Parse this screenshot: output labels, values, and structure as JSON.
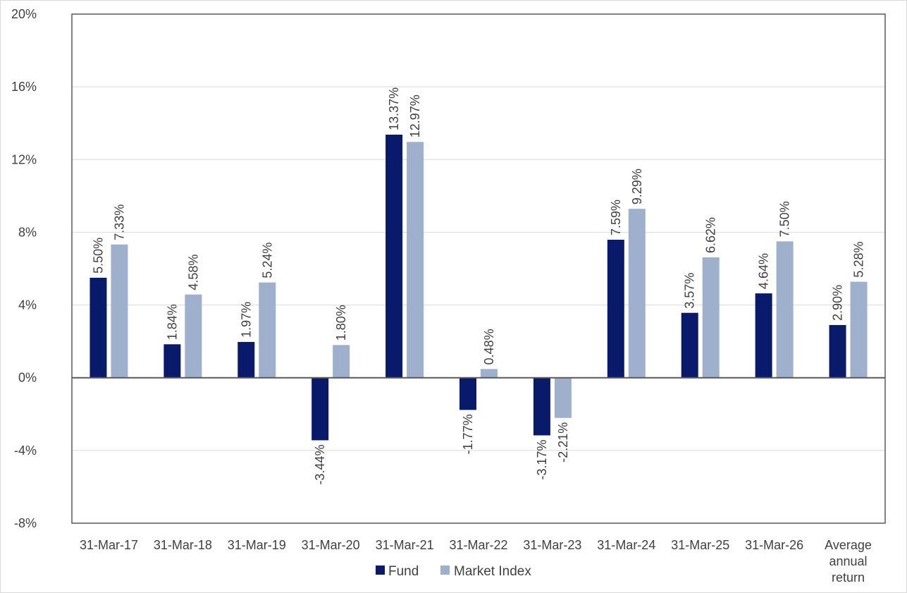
{
  "chart_data": {
    "type": "bar",
    "categories": [
      [
        "31-Mar-17"
      ],
      [
        "31-Mar-18"
      ],
      [
        "31-Mar-19"
      ],
      [
        "31-Mar-20"
      ],
      [
        "31-Mar-21"
      ],
      [
        "31-Mar-22"
      ],
      [
        "31-Mar-23"
      ],
      [
        "31-Mar-24"
      ],
      [
        "31-Mar-25"
      ],
      [
        "31-Mar-26"
      ],
      [
        "Average",
        "annual",
        "return"
      ]
    ],
    "series": [
      {
        "name": "Fund",
        "color": "#0a1a6b",
        "values": [
          5.5,
          1.84,
          1.97,
          -3.44,
          13.37,
          -1.77,
          -3.17,
          7.59,
          3.57,
          4.64,
          2.9
        ],
        "labels": [
          "5.50%",
          "1.84%",
          "1.97%",
          "-3.44%",
          "13.37%",
          "-1.77%",
          "-3.17%",
          "7.59%",
          "3.57%",
          "4.64%",
          "2.90%"
        ]
      },
      {
        "name": "Market Index",
        "color": "#9fb0cc",
        "values": [
          7.33,
          4.58,
          5.24,
          1.8,
          12.97,
          0.48,
          -2.21,
          9.29,
          6.62,
          7.5,
          5.28
        ],
        "labels": [
          "7.33%",
          "4.58%",
          "5.24%",
          "1.80%",
          "12.97%",
          "0.48%",
          "-2.21%",
          "9.29%",
          "6.62%",
          "7.50%",
          "5.28%"
        ]
      }
    ],
    "y_ticks": [
      20,
      16,
      12,
      8,
      4,
      0,
      -4,
      -8
    ],
    "y_tick_labels": [
      "20%",
      "16%",
      "12%",
      "8%",
      "4%",
      "0%",
      "-4%",
      "-8%"
    ],
    "ylim": [
      -8,
      20
    ],
    "grid": true,
    "legend_position": "bottom-center",
    "title": "",
    "xlabel": "",
    "ylabel": ""
  }
}
